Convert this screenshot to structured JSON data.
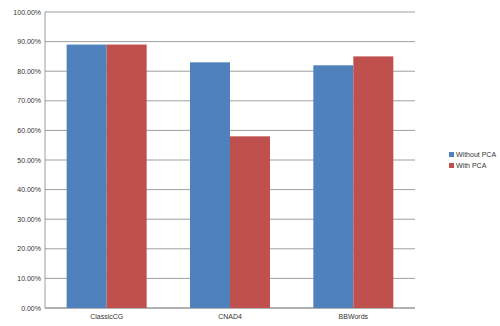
{
  "chart_data": {
    "type": "bar",
    "categories": [
      "ClassicCG",
      "CNAD4",
      "BBWords"
    ],
    "series": [
      {
        "name": "Without PCA",
        "color": "#4f81bd",
        "values": [
          89,
          83,
          82
        ]
      },
      {
        "name": "With PCA",
        "color": "#c0504d",
        "values": [
          89,
          58,
          85
        ]
      }
    ],
    "ylim": [
      0,
      100
    ],
    "yticks": [
      {
        "value": 0,
        "label": "0.00%"
      },
      {
        "value": 10,
        "label": "10.00%"
      },
      {
        "value": 20,
        "label": "20.00%"
      },
      {
        "value": 30,
        "label": "30.00%"
      },
      {
        "value": 40,
        "label": "40.00%"
      },
      {
        "value": 50,
        "label": "50.00%"
      },
      {
        "value": 60,
        "label": "60.00%"
      },
      {
        "value": 70,
        "label": "70.00%"
      },
      {
        "value": 80,
        "label": "80.00%"
      },
      {
        "value": 90,
        "label": "90.00%"
      },
      {
        "value": 100,
        "label": "100.00%"
      }
    ],
    "grid": true,
    "legend": "right"
  }
}
